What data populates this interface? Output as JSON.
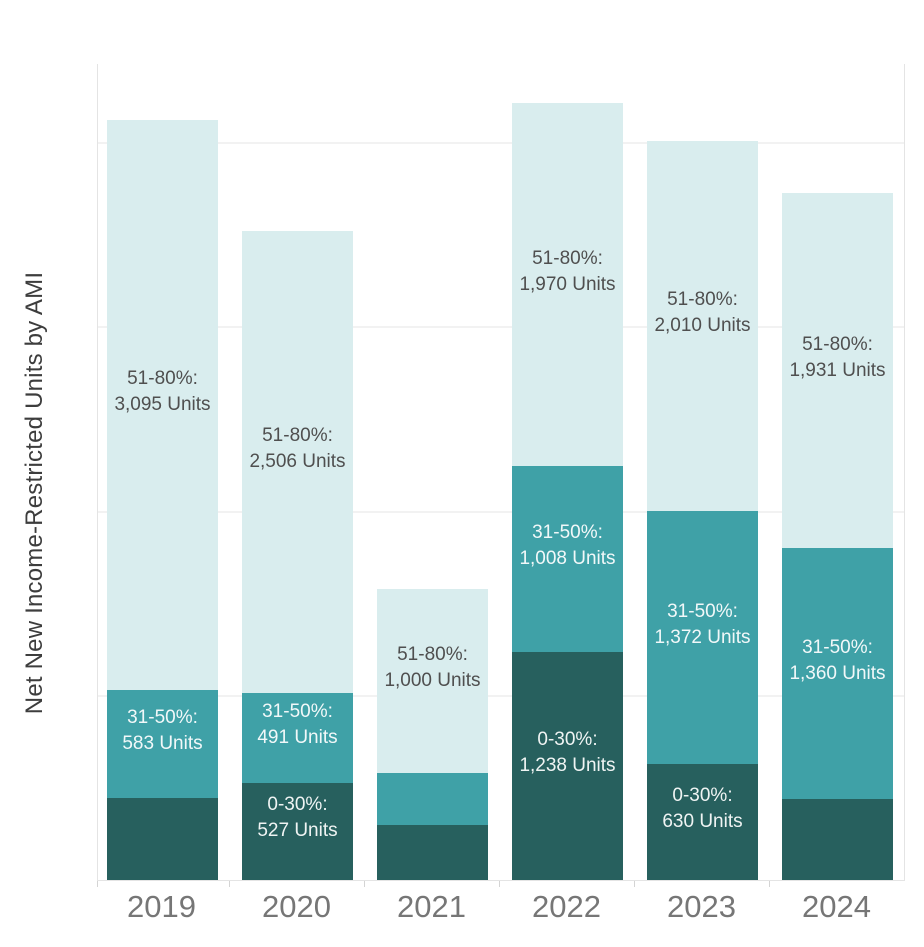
{
  "page": {
    "background_color": "#ffffff"
  },
  "chart_data": {
    "type": "bar",
    "stacked": true,
    "title": "",
    "xlabel": "",
    "ylabel": "Net New Income-Restricted Units by AMI",
    "categories": [
      "2019",
      "2020",
      "2021",
      "2022",
      "2023",
      "2024"
    ],
    "series": [
      {
        "name": "0-30%",
        "color": "#27605e",
        "values": [
          447,
          527,
          300,
          1238,
          630,
          440
        ],
        "value_labeled_on_chart": [
          false,
          true,
          false,
          true,
          true,
          false
        ],
        "bar_labels": [
          null,
          "0-30%:\n527 Units",
          null,
          "0-30%:\n1,238 Units",
          "0-30%:\n630 Units",
          null
        ]
      },
      {
        "name": "31-50%",
        "color": "#3fa1a7",
        "values": [
          583,
          491,
          280,
          1008,
          1372,
          1360
        ],
        "value_labeled_on_chart": [
          true,
          true,
          false,
          true,
          true,
          true
        ],
        "bar_labels": [
          "31-50%:\n583 Units",
          "31-50%:\n491 Units",
          null,
          "31-50%:\n1,008 Units",
          "31-50%:\n1,372 Units",
          "31-50%:\n1,360 Units"
        ]
      },
      {
        "name": "51-80%",
        "color": "#d9edee",
        "values": [
          3095,
          2506,
          1000,
          1970,
          2010,
          1931
        ],
        "value_labeled_on_chart": [
          true,
          true,
          true,
          true,
          true,
          true
        ],
        "bar_labels": [
          "51-80%:\n3,095 Units",
          "51-80%:\n2,506 Units",
          "51-80%:\n1,000 Units",
          "51-80%:\n1,970 Units",
          "51-80%:\n2,010 Units",
          "51-80%:\n1,931 Units"
        ]
      }
    ],
    "ylim": [
      0,
      4430
    ],
    "y_tick_labels_visible": false,
    "gridlines": [
      1000,
      2000,
      3000,
      4000
    ],
    "grid": true,
    "legend": false,
    "label_text_color_on_light_segment": "#4f4f4f",
    "label_text_color_on_dark_segment": "#f0f8f8",
    "x_tick_label_color": "#767676",
    "axis_line_color": "#e4e4e4",
    "gridline_color": "#f2f2f2"
  }
}
